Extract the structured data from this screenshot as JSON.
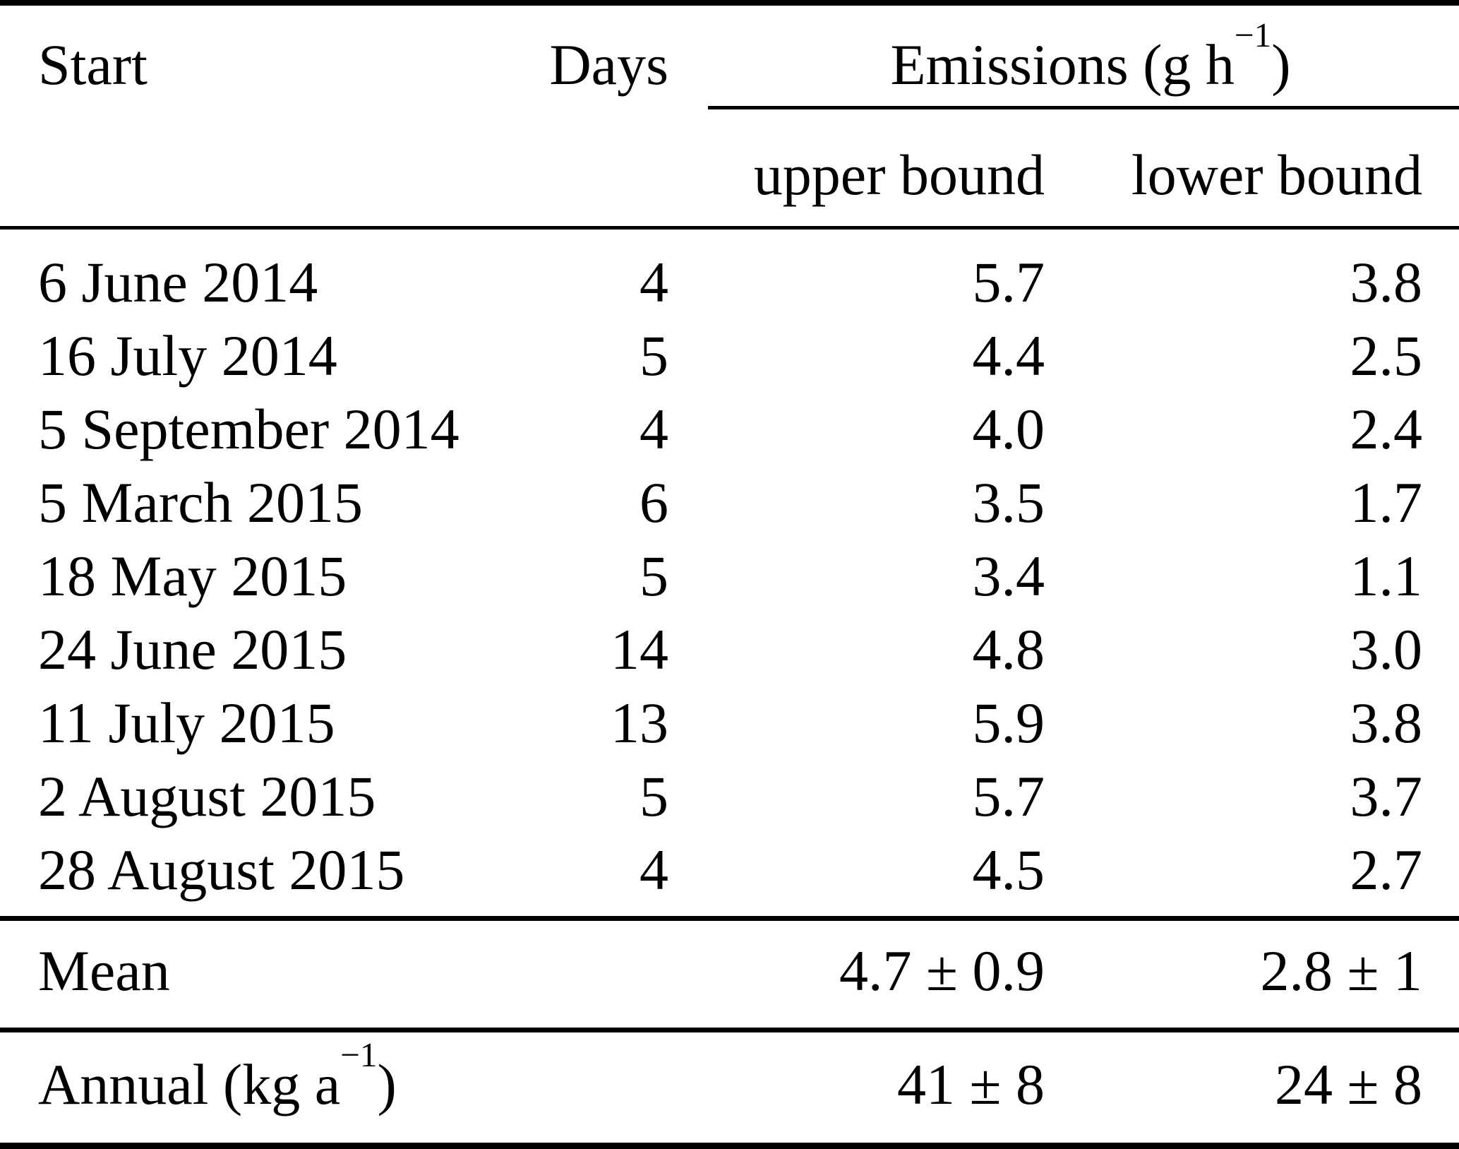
{
  "table": {
    "header": {
      "start": "Start",
      "days": "Days",
      "emissions": {
        "prefix": "Emissions (g h",
        "sup": "−1",
        "suffix": ")"
      },
      "upper_bound": "upper bound",
      "lower_bound": "lower bound"
    },
    "rows": [
      {
        "start": "6 June 2014",
        "days": "4",
        "upper": "5.7",
        "lower": "3.8"
      },
      {
        "start": "16 July 2014",
        "days": "5",
        "upper": "4.4",
        "lower": "2.5"
      },
      {
        "start": "5 September 2014",
        "days": "4",
        "upper": "4.0",
        "lower": "2.4"
      },
      {
        "start": "5 March 2015",
        "days": "6",
        "upper": "3.5",
        "lower": "1.7"
      },
      {
        "start": "18 May 2015",
        "days": "5",
        "upper": "3.4",
        "lower": "1.1"
      },
      {
        "start": "24 June 2015",
        "days": "14",
        "upper": "4.8",
        "lower": "3.0"
      },
      {
        "start": "11 July 2015",
        "days": "13",
        "upper": "5.9",
        "lower": "3.8"
      },
      {
        "start": "2 August 2015",
        "days": "5",
        "upper": "5.7",
        "lower": "3.7"
      },
      {
        "start": "28 August 2015",
        "days": "4",
        "upper": "4.5",
        "lower": "2.7"
      }
    ],
    "summary": {
      "mean": {
        "label": "Mean",
        "upper": "4.7 ± 0.9",
        "lower": "2.8 ± 1"
      },
      "annual": {
        "label_prefix": "Annual (kg a",
        "label_sup": "−1",
        "label_suffix": ")",
        "upper": "41 ± 8",
        "lower": "24 ± 8"
      }
    },
    "colors": {
      "text": "#000000",
      "rule": "#000000",
      "background": "#ffffff"
    }
  }
}
